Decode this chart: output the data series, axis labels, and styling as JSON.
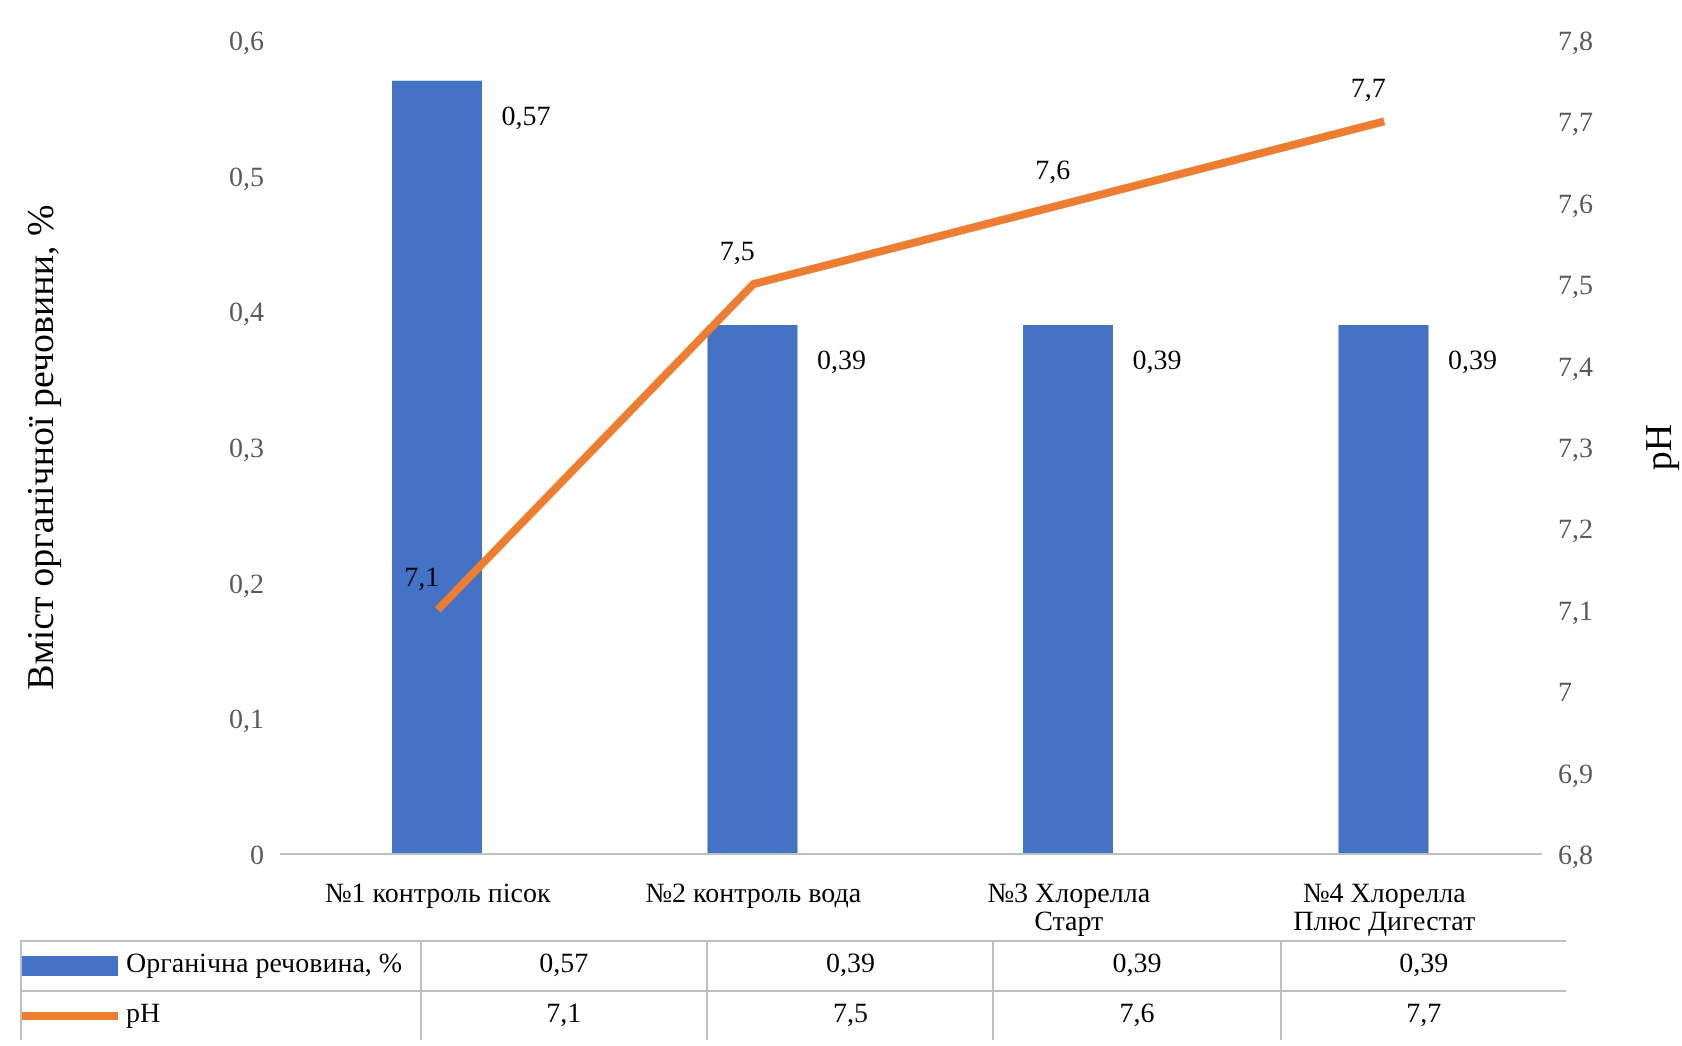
{
  "chart_data": {
    "type": "bar",
    "categories": [
      "№1 контроль пісок",
      "№2 контроль вода",
      "№3 Хлорелла Старт",
      "№4 Хлорелла Плюс Дигестат"
    ],
    "ylabel": "Вміст  органічної речовини, %",
    "y2label": "pH",
    "ylim": [
      0,
      0.6
    ],
    "yticks": [
      0,
      {
        "value": 0.1,
        "label": "0,1"
      },
      {
        "value": 0.2,
        "label": "0,2"
      },
      {
        "value": 0.3,
        "label": "0,3"
      },
      {
        "value": 0.4,
        "label": "0,4"
      },
      {
        "value": 0.5,
        "label": "0,5"
      },
      {
        "value": 0.6,
        "label": "0,6"
      }
    ],
    "y2lim": [
      6.8,
      7.8
    ],
    "y2ticks": [
      {
        "value": 6.8,
        "label": "6,8"
      },
      {
        "value": 6.9,
        "label": "6,9"
      },
      7,
      {
        "value": 7.1,
        "label": "7,1"
      },
      {
        "value": 7.2,
        "label": "7,2"
      },
      {
        "value": 7.3,
        "label": "7,3"
      },
      {
        "value": 7.4,
        "label": "7,4"
      },
      {
        "value": 7.5,
        "label": "7,5"
      },
      {
        "value": 7.6,
        "label": "7,6"
      },
      {
        "value": 7.7,
        "label": "7,7"
      },
      {
        "value": 7.8,
        "label": "7,8"
      }
    ],
    "series": [
      {
        "name": "Органічна речовина, %",
        "color": "#4472c4",
        "values": [
          0.57,
          0.39,
          0.39,
          0.39
        ],
        "value_labels": [
          "0,57",
          "0,39",
          "0,39",
          "0,39"
        ]
      },
      {
        "name": "pH",
        "type": "line",
        "axis": "y2",
        "color": "#ed7d31",
        "values": [
          7.1,
          7.5,
          7.6,
          7.7
        ],
        "value_labels": [
          "7,1",
          "7,5",
          "7,6",
          "7,7"
        ]
      }
    ],
    "legend": "bottom",
    "grid": false,
    "marker": "none"
  }
}
